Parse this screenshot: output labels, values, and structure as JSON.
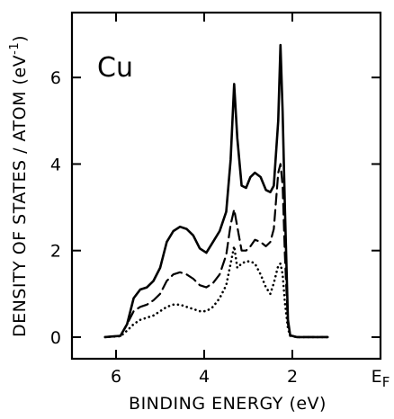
{
  "chart_data": {
    "type": "line",
    "title": "",
    "panel_label": "Cu",
    "xlabel": "BINDING ENERGY (eV)",
    "ylabel": "DENSITY OF STATES / ATOM (eV",
    "ylabel_superscript": "-1",
    "ylabel_close": ")",
    "xlim": [
      7,
      0
    ],
    "ylim": [
      -0.5,
      7.5
    ],
    "x_ticks": [
      {
        "value": 6,
        "label": "6"
      },
      {
        "value": 4,
        "label": "4"
      },
      {
        "value": 2,
        "label": "2"
      },
      {
        "value": 0,
        "label": "E",
        "sub": "F"
      }
    ],
    "y_ticks": [
      {
        "value": 0,
        "label": "0"
      },
      {
        "value": 2,
        "label": "2"
      },
      {
        "value": 4,
        "label": "4"
      },
      {
        "value": 6,
        "label": "6"
      }
    ],
    "grid": false,
    "series": [
      {
        "style": "solid",
        "points": [
          [
            6.25,
            0
          ],
          [
            5.9,
            0.03
          ],
          [
            5.75,
            0.3
          ],
          [
            5.6,
            0.9
          ],
          [
            5.45,
            1.1
          ],
          [
            5.3,
            1.15
          ],
          [
            5.15,
            1.3
          ],
          [
            5.0,
            1.6
          ],
          [
            4.85,
            2.2
          ],
          [
            4.7,
            2.45
          ],
          [
            4.55,
            2.55
          ],
          [
            4.4,
            2.5
          ],
          [
            4.25,
            2.35
          ],
          [
            4.1,
            2.05
          ],
          [
            3.95,
            1.95
          ],
          [
            3.8,
            2.2
          ],
          [
            3.65,
            2.45
          ],
          [
            3.5,
            2.9
          ],
          [
            3.4,
            4.1
          ],
          [
            3.32,
            5.85
          ],
          [
            3.25,
            4.6
          ],
          [
            3.15,
            3.5
          ],
          [
            3.05,
            3.45
          ],
          [
            2.95,
            3.7
          ],
          [
            2.85,
            3.8
          ],
          [
            2.72,
            3.7
          ],
          [
            2.6,
            3.4
          ],
          [
            2.5,
            3.35
          ],
          [
            2.42,
            3.5
          ],
          [
            2.32,
            5.0
          ],
          [
            2.27,
            6.75
          ],
          [
            2.22,
            5.2
          ],
          [
            2.17,
            3.0
          ],
          [
            2.1,
            0.4
          ],
          [
            2.05,
            0.04
          ],
          [
            1.9,
            0
          ],
          [
            1.2,
            0
          ]
        ]
      },
      {
        "style": "dashed",
        "points": [
          [
            6.25,
            0
          ],
          [
            5.9,
            0.03
          ],
          [
            5.75,
            0.3
          ],
          [
            5.6,
            0.6
          ],
          [
            5.45,
            0.7
          ],
          [
            5.3,
            0.75
          ],
          [
            5.15,
            0.85
          ],
          [
            5.0,
            1.0
          ],
          [
            4.85,
            1.3
          ],
          [
            4.7,
            1.45
          ],
          [
            4.55,
            1.5
          ],
          [
            4.4,
            1.45
          ],
          [
            4.25,
            1.35
          ],
          [
            4.1,
            1.2
          ],
          [
            3.95,
            1.15
          ],
          [
            3.8,
            1.25
          ],
          [
            3.65,
            1.45
          ],
          [
            3.5,
            1.9
          ],
          [
            3.4,
            2.6
          ],
          [
            3.32,
            2.95
          ],
          [
            3.25,
            2.55
          ],
          [
            3.15,
            2.0
          ],
          [
            3.05,
            2.0
          ],
          [
            2.95,
            2.1
          ],
          [
            2.85,
            2.25
          ],
          [
            2.72,
            2.2
          ],
          [
            2.6,
            2.1
          ],
          [
            2.5,
            2.2
          ],
          [
            2.42,
            2.5
          ],
          [
            2.32,
            3.8
          ],
          [
            2.27,
            4.0
          ],
          [
            2.22,
            3.5
          ],
          [
            2.17,
            1.9
          ],
          [
            2.1,
            0.3
          ],
          [
            2.05,
            0.04
          ],
          [
            1.9,
            0
          ],
          [
            1.2,
            0
          ]
        ]
      },
      {
        "style": "dotted",
        "points": [
          [
            6.25,
            0
          ],
          [
            5.9,
            0.02
          ],
          [
            5.75,
            0.15
          ],
          [
            5.6,
            0.3
          ],
          [
            5.45,
            0.4
          ],
          [
            5.3,
            0.45
          ],
          [
            5.15,
            0.5
          ],
          [
            5.0,
            0.6
          ],
          [
            4.85,
            0.7
          ],
          [
            4.7,
            0.75
          ],
          [
            4.55,
            0.75
          ],
          [
            4.4,
            0.7
          ],
          [
            4.25,
            0.65
          ],
          [
            4.1,
            0.6
          ],
          [
            3.95,
            0.6
          ],
          [
            3.8,
            0.7
          ],
          [
            3.65,
            0.9
          ],
          [
            3.5,
            1.2
          ],
          [
            3.4,
            1.7
          ],
          [
            3.32,
            2.1
          ],
          [
            3.25,
            1.6
          ],
          [
            3.15,
            1.7
          ],
          [
            3.05,
            1.75
          ],
          [
            2.95,
            1.75
          ],
          [
            2.85,
            1.7
          ],
          [
            2.72,
            1.45
          ],
          [
            2.6,
            1.15
          ],
          [
            2.5,
            1.0
          ],
          [
            2.42,
            1.25
          ],
          [
            2.32,
            1.65
          ],
          [
            2.27,
            1.7
          ],
          [
            2.22,
            1.45
          ],
          [
            2.17,
            0.8
          ],
          [
            2.1,
            0.2
          ],
          [
            2.05,
            0.03
          ],
          [
            1.9,
            0
          ],
          [
            1.2,
            0
          ]
        ]
      }
    ]
  }
}
